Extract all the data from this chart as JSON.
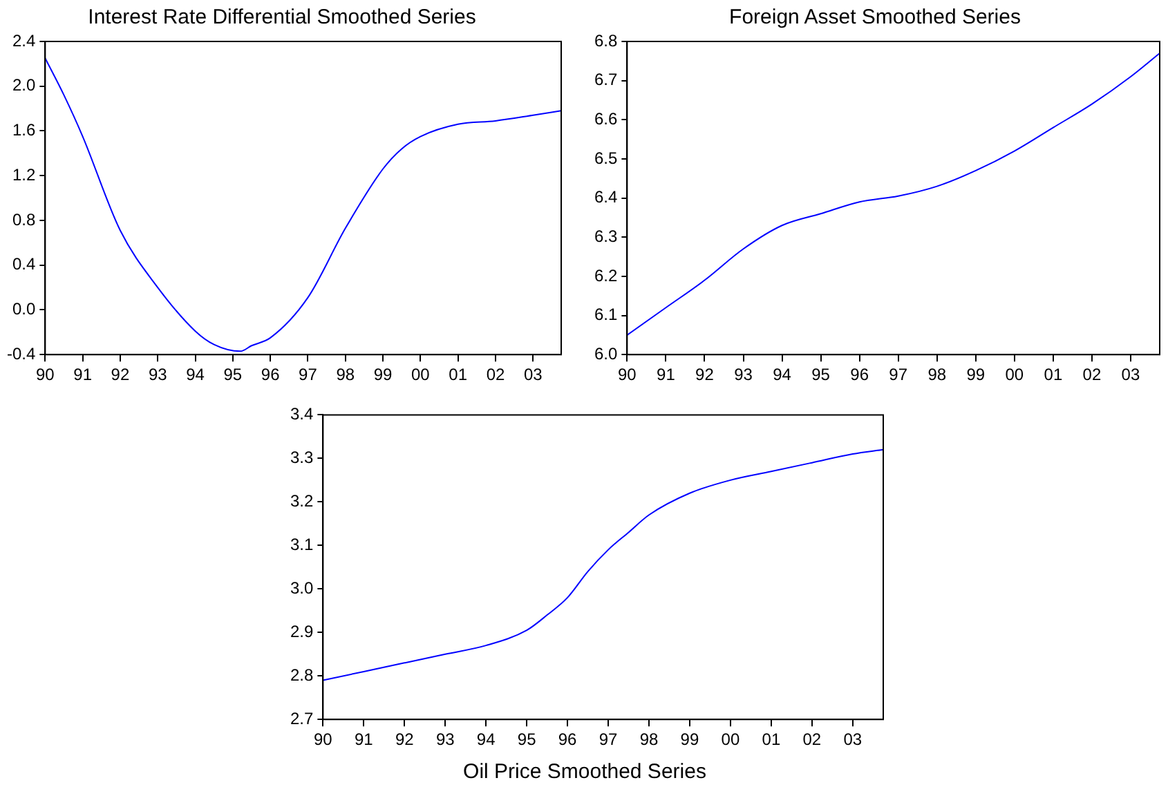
{
  "chart_data": [
    {
      "type": "line",
      "title": "Interest Rate Differential Smoothed Series",
      "x": [
        1990,
        1990.5,
        1991,
        1992,
        1993,
        1994,
        1994.5,
        1995.2,
        1995.5,
        1996,
        1997,
        1998,
        1999,
        1999.5,
        2000,
        2001,
        2002,
        2003,
        2003.75
      ],
      "series": [
        {
          "color": "#0000ff",
          "values": [
            2.25,
            1.92,
            1.55,
            0.71,
            0.2,
            -0.19,
            -0.31,
            -0.37,
            -0.32,
            -0.25,
            0.11,
            0.73,
            1.26,
            1.44,
            1.55,
            1.66,
            1.69,
            1.74,
            1.78
          ]
        }
      ],
      "xlim": [
        1990,
        2003.75
      ],
      "xticks": [
        {
          "value": 1990,
          "label": "90"
        },
        {
          "value": 1991,
          "label": "91"
        },
        {
          "value": 1992,
          "label": "92"
        },
        {
          "value": 1993,
          "label": "93"
        },
        {
          "value": 1994,
          "label": "94"
        },
        {
          "value": 1995,
          "label": "95"
        },
        {
          "value": 1996,
          "label": "96"
        },
        {
          "value": 1997,
          "label": "97"
        },
        {
          "value": 1998,
          "label": "98"
        },
        {
          "value": 1999,
          "label": "99"
        },
        {
          "value": 2000,
          "label": "00"
        },
        {
          "value": 2001,
          "label": "01"
        },
        {
          "value": 2002,
          "label": "02"
        },
        {
          "value": 2003,
          "label": "03"
        }
      ],
      "ylim": [
        -0.4,
        2.4
      ],
      "yticks": [
        {
          "value": -0.4,
          "label": "-0.4"
        },
        {
          "value": 0,
          "label": "0.0"
        },
        {
          "value": 0.4,
          "label": "0.4"
        },
        {
          "value": 0.8,
          "label": "0.8"
        },
        {
          "value": 1.2,
          "label": "1.2"
        },
        {
          "value": 1.6,
          "label": "1.6"
        },
        {
          "value": 2,
          "label": "2.0"
        },
        {
          "value": 2.4,
          "label": "2.4"
        }
      ],
      "grid": false,
      "legend": false,
      "marker": "none",
      "line_style": "solid"
    },
    {
      "type": "line",
      "title": "Foreign Asset Smoothed Series",
      "x": [
        1990,
        1991,
        1992,
        1993,
        1994,
        1995,
        1996,
        1997,
        1998,
        1999,
        2000,
        2001,
        2002,
        2003,
        2003.75
      ],
      "series": [
        {
          "color": "#0000ff",
          "values": [
            6.05,
            6.12,
            6.19,
            6.27,
            6.33,
            6.36,
            6.39,
            6.405,
            6.43,
            6.47,
            6.52,
            6.58,
            6.64,
            6.71,
            6.77
          ]
        }
      ],
      "xlim": [
        1990,
        2003.75
      ],
      "xticks": [
        {
          "value": 1990,
          "label": "90"
        },
        {
          "value": 1991,
          "label": "91"
        },
        {
          "value": 1992,
          "label": "92"
        },
        {
          "value": 1993,
          "label": "93"
        },
        {
          "value": 1994,
          "label": "94"
        },
        {
          "value": 1995,
          "label": "95"
        },
        {
          "value": 1996,
          "label": "96"
        },
        {
          "value": 1997,
          "label": "97"
        },
        {
          "value": 1998,
          "label": "98"
        },
        {
          "value": 1999,
          "label": "99"
        },
        {
          "value": 2000,
          "label": "00"
        },
        {
          "value": 2001,
          "label": "01"
        },
        {
          "value": 2002,
          "label": "02"
        },
        {
          "value": 2003,
          "label": "03"
        }
      ],
      "ylim": [
        6.0,
        6.8
      ],
      "yticks": [
        {
          "value": 6.0,
          "label": "6.0"
        },
        {
          "value": 6.1,
          "label": "6.1"
        },
        {
          "value": 6.2,
          "label": "6.2"
        },
        {
          "value": 6.3,
          "label": "6.3"
        },
        {
          "value": 6.4,
          "label": "6.4"
        },
        {
          "value": 6.5,
          "label": "6.5"
        },
        {
          "value": 6.6,
          "label": "6.6"
        },
        {
          "value": 6.7,
          "label": "6.7"
        },
        {
          "value": 6.8,
          "label": "6.8"
        }
      ],
      "grid": false,
      "legend": false,
      "marker": "none",
      "line_style": "solid"
    },
    {
      "type": "line",
      "title": "Oil Price Smoothed Series",
      "x": [
        1990,
        1991,
        1992,
        1993,
        1994,
        1995,
        1995.5,
        1996,
        1996.5,
        1997,
        1997.5,
        1998,
        1999,
        2000,
        2001,
        2002,
        2003,
        2003.75
      ],
      "series": [
        {
          "color": "#0000ff",
          "values": [
            2.79,
            2.81,
            2.83,
            2.85,
            2.87,
            2.905,
            2.94,
            2.98,
            3.04,
            3.09,
            3.13,
            3.17,
            3.22,
            3.25,
            3.27,
            3.29,
            3.31,
            3.32
          ]
        }
      ],
      "xlim": [
        1990,
        2003.75
      ],
      "xticks": [
        {
          "value": 1990,
          "label": "90"
        },
        {
          "value": 1991,
          "label": "91"
        },
        {
          "value": 1992,
          "label": "92"
        },
        {
          "value": 1993,
          "label": "93"
        },
        {
          "value": 1994,
          "label": "94"
        },
        {
          "value": 1995,
          "label": "95"
        },
        {
          "value": 1996,
          "label": "96"
        },
        {
          "value": 1997,
          "label": "97"
        },
        {
          "value": 1998,
          "label": "98"
        },
        {
          "value": 1999,
          "label": "99"
        },
        {
          "value": 2000,
          "label": "00"
        },
        {
          "value": 2001,
          "label": "01"
        },
        {
          "value": 2002,
          "label": "02"
        },
        {
          "value": 2003,
          "label": "03"
        }
      ],
      "ylim": [
        2.7,
        3.4
      ],
      "yticks": [
        {
          "value": 2.7,
          "label": "2.7"
        },
        {
          "value": 2.8,
          "label": "2.8"
        },
        {
          "value": 2.9,
          "label": "2.9"
        },
        {
          "value": 3.0,
          "label": "3.0"
        },
        {
          "value": 3.1,
          "label": "3.1"
        },
        {
          "value": 3.2,
          "label": "3.2"
        },
        {
          "value": 3.3,
          "label": "3.3"
        },
        {
          "value": 3.4,
          "label": "3.4"
        }
      ],
      "grid": false,
      "legend": false,
      "marker": "none",
      "line_style": "solid"
    }
  ]
}
